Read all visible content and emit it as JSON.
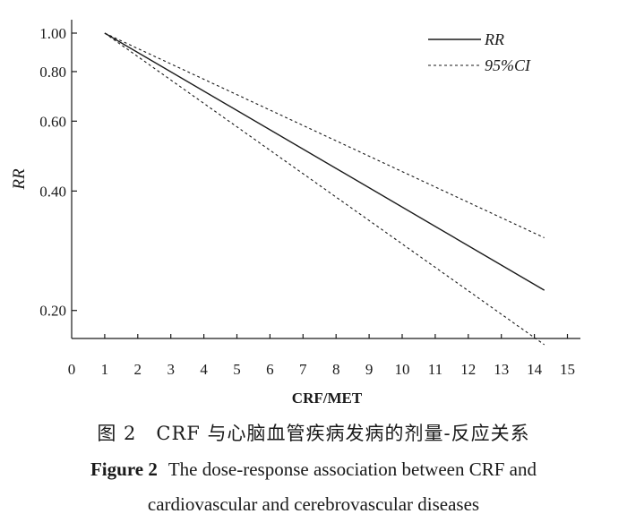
{
  "chart_data": {
    "type": "line",
    "title": "",
    "xlabel": "CRF/MET",
    "ylabel": "RR",
    "xlim": [
      0,
      15
    ],
    "ylim": [
      0.17,
      1.0
    ],
    "x_ticks": [
      "0",
      "1",
      "2",
      "3",
      "4",
      "5",
      "6",
      "7",
      "8",
      "9",
      "10",
      "11",
      "12",
      "13",
      "14",
      "15"
    ],
    "y_ticks": [
      {
        "value": 1.0,
        "label": "1.00"
      },
      {
        "value": 0.8,
        "label": "0.80"
      },
      {
        "value": 0.6,
        "label": "0.60"
      },
      {
        "value": 0.4,
        "label": "0.40"
      },
      {
        "value": 0.2,
        "label": "0.20"
      }
    ],
    "legend_position": "top-right",
    "series": [
      {
        "name": "RR",
        "style": "solid",
        "x": [
          1,
          14.3
        ],
        "y": [
          1.0,
          0.225
        ]
      },
      {
        "name": "95%CI",
        "style": "dashed",
        "x": [
          1,
          14.3
        ],
        "y": [
          1.0,
          0.305
        ]
      },
      {
        "name": "95%CI",
        "style": "dashed",
        "x": [
          1,
          14.3
        ],
        "y": [
          1.0,
          0.164
        ]
      }
    ],
    "legend": [
      {
        "label": "RR",
        "style": "solid"
      },
      {
        "label": "95%CI",
        "style": "dashed"
      }
    ]
  },
  "caption": {
    "zh": "图 2　CRF 与心脑血管疾病发病的剂量-反应关系",
    "en_label": "Figure 2",
    "en_text": "The dose-response association between CRF and",
    "en_line2": "cardiovascular and cerebrovascular diseases"
  }
}
